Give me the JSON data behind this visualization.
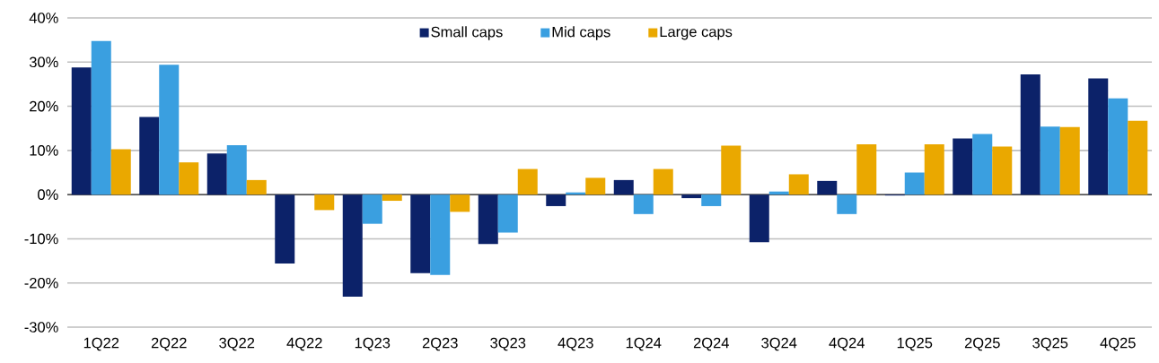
{
  "chart_data": {
    "type": "bar",
    "categories": [
      "1Q22",
      "2Q22",
      "3Q22",
      "4Q22",
      "1Q23",
      "2Q23",
      "3Q23",
      "4Q23",
      "1Q24",
      "2Q24",
      "3Q24",
      "4Q24",
      "1Q25",
      "2Q25",
      "3Q25",
      "4Q25"
    ],
    "series": [
      {
        "name": "Small caps",
        "color": "#0c2269",
        "values": [
          28.8,
          17.6,
          9.3,
          -15.6,
          -23.1,
          -17.8,
          -11.2,
          -2.6,
          3.3,
          -0.8,
          -10.8,
          3.1,
          -0.2,
          12.7,
          27.2,
          26.3
        ]
      },
      {
        "name": "Mid caps",
        "color": "#3a9fe0",
        "values": [
          34.8,
          29.4,
          11.2,
          0,
          -6.6,
          -18.2,
          -8.6,
          0.5,
          -4.4,
          -2.6,
          0.7,
          -4.4,
          5.0,
          13.7,
          15.4,
          21.8
        ]
      },
      {
        "name": "Large caps",
        "color": "#eaa800",
        "values": [
          10.3,
          7.3,
          3.3,
          -3.5,
          -1.4,
          -3.9,
          5.8,
          3.8,
          5.8,
          11.1,
          4.6,
          11.4,
          11.4,
          10.9,
          15.3,
          16.7
        ]
      }
    ],
    "ylim": [
      -30,
      40
    ],
    "yticks": [
      {
        "value": -30,
        "label": "-30%"
      },
      {
        "value": -20,
        "label": "-20%"
      },
      {
        "value": -10,
        "label": "-10%"
      },
      {
        "value": 0,
        "label": "0%"
      },
      {
        "value": 10,
        "label": "10%"
      },
      {
        "value": 20,
        "label": "20%"
      },
      {
        "value": 30,
        "label": "30%"
      },
      {
        "value": 40,
        "label": "40%"
      }
    ],
    "grid": "y",
    "legend": "top"
  }
}
